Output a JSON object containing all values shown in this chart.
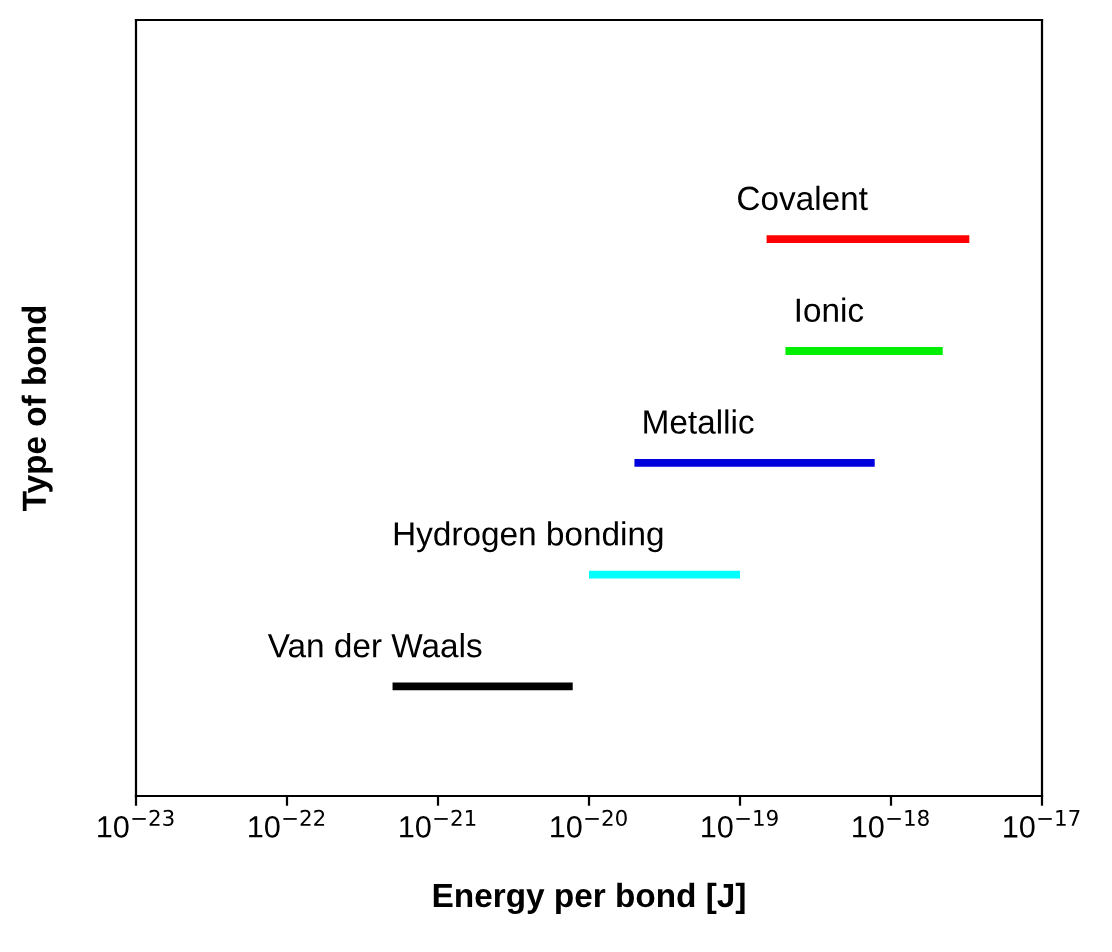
{
  "chart_data": {
    "type": "bar",
    "orientation": "horizontal",
    "log": "x",
    "xlabel": "Energy per bond [J]",
    "ylabel": "Type of bond",
    "categories": [
      "Covalent",
      "Ionic",
      "Metallic",
      "Hydrogen bonding",
      "Van der Waals"
    ],
    "base": [
      1.5e-19,
      2e-19,
      2e-20,
      1e-20,
      5e-22
    ],
    "values": [
      3.15e-18,
      2e-18,
      7.6e-19,
      9e-20,
      7.3e-21
    ],
    "colors": [
      "#ff0000",
      "#00ee00",
      "#0000dd",
      "#00ffff",
      "#000000"
    ],
    "xlim": [
      1e-23,
      1e-17
    ],
    "xticks": [
      {
        "value": 1e-23,
        "label": "10$^{−23}$"
      },
      {
        "value": 1e-22,
        "label": "10$^{−22}$"
      },
      {
        "value": 1e-21,
        "label": "10$^{−21}$"
      },
      {
        "value": 1e-20,
        "label": "10$^{−20}$"
      },
      {
        "value": 1e-19,
        "label": "10$^{−19}$"
      },
      {
        "value": 1e-18,
        "label": "10$^{−18}$"
      },
      {
        "value": 1e-17,
        "label": "10$^{−17}$"
      }
    ],
    "tick_labels": "x",
    "grid": false,
    "legend": false
  }
}
